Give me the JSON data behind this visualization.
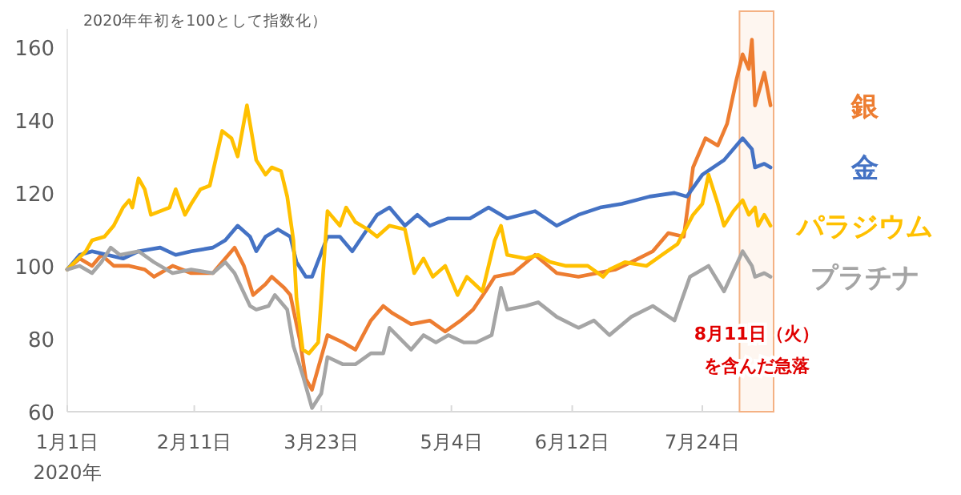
{
  "chart_data": {
    "type": "line",
    "subtitle": "2020年年初を100として指数化）",
    "xlim": [
      "2020-01-01",
      "2020-08-16"
    ],
    "xticks": [
      {
        "value": "2020-01-01",
        "label": "1月1日\n2020年"
      },
      {
        "value": "2020-02-11",
        "label": "2月11日"
      },
      {
        "value": "2020-03-23",
        "label": "3月23日"
      },
      {
        "value": "2020-05-04",
        "label": "5月4日"
      },
      {
        "value": "2020-06-12",
        "label": "6月12日"
      },
      {
        "value": "2020-07-24",
        "label": "7月24日"
      }
    ],
    "ylim": [
      60,
      165
    ],
    "yticks": [
      60,
      80,
      100,
      120,
      140,
      160
    ],
    "grid": false,
    "marker": "none",
    "line_style": "solid",
    "bands": [
      {
        "axis": "x",
        "from": "2020-08-05",
        "to": "2020-08-16",
        "label": "8月11日（火）を含んだ急落",
        "color": "#f4b183"
      }
    ],
    "series": [
      {
        "name": "銀",
        "color": "#ed7d31",
        "x": [
          "2020-01-01",
          "2020-01-05",
          "2020-01-09",
          "2020-01-12",
          "2020-01-16",
          "2020-01-21",
          "2020-01-26",
          "2020-01-29",
          "2020-02-04",
          "2020-02-10",
          "2020-02-17",
          "2020-02-21",
          "2020-02-24",
          "2020-02-27",
          "2020-03-01",
          "2020-03-05",
          "2020-03-07",
          "2020-03-11",
          "2020-03-13",
          "2020-03-16",
          "2020-03-18",
          "2020-03-20",
          "2020-03-25",
          "2020-03-30",
          "2020-04-03",
          "2020-04-08",
          "2020-04-12",
          "2020-04-15",
          "2020-04-21",
          "2020-04-27",
          "2020-05-02",
          "2020-05-07",
          "2020-05-11",
          "2020-05-15",
          "2020-05-18",
          "2020-05-24",
          "2020-05-31",
          "2020-06-07",
          "2020-06-14",
          "2020-06-26",
          "2020-07-01",
          "2020-07-08",
          "2020-07-13",
          "2020-07-18",
          "2020-07-21",
          "2020-07-25",
          "2020-07-29",
          "2020-08-01",
          "2020-08-04",
          "2020-08-06",
          "2020-08-08",
          "2020-08-09",
          "2020-08-10",
          "2020-08-13",
          "2020-08-15"
        ],
        "values": [
          99,
          102,
          100,
          103,
          100,
          100,
          99,
          97,
          100,
          98,
          98,
          102,
          105,
          100,
          92,
          95,
          97,
          94,
          92,
          80,
          69,
          66,
          81,
          79,
          77,
          85,
          89,
          87,
          84,
          85,
          82,
          85,
          88,
          93,
          97,
          98,
          103,
          98,
          97,
          99,
          101,
          104,
          109,
          108,
          127,
          135,
          133,
          139,
          151,
          158,
          154,
          162,
          144,
          153,
          144
        ]
      },
      {
        "name": "金",
        "color": "#4472c4",
        "x": [
          "2020-01-01",
          "2020-01-05",
          "2020-01-09",
          "2020-01-14",
          "2020-01-19",
          "2020-01-24",
          "2020-01-31",
          "2020-02-05",
          "2020-02-10",
          "2020-02-17",
          "2020-02-21",
          "2020-02-25",
          "2020-02-29",
          "2020-03-02",
          "2020-03-05",
          "2020-03-09",
          "2020-03-13",
          "2020-03-15",
          "2020-03-18",
          "2020-03-20",
          "2020-03-25",
          "2020-03-29",
          "2020-04-02",
          "2020-04-06",
          "2020-04-10",
          "2020-04-14",
          "2020-04-19",
          "2020-04-23",
          "2020-04-27",
          "2020-05-03",
          "2020-05-10",
          "2020-05-16",
          "2020-05-22",
          "2020-05-31",
          "2020-06-07",
          "2020-06-14",
          "2020-06-21",
          "2020-06-28",
          "2020-07-07",
          "2020-07-15",
          "2020-07-19",
          "2020-07-24",
          "2020-07-31",
          "2020-08-06",
          "2020-08-09",
          "2020-08-10",
          "2020-08-13",
          "2020-08-15"
        ],
        "values": [
          99,
          103,
          104,
          103,
          102,
          104,
          105,
          103,
          104,
          105,
          107,
          111,
          108,
          104,
          108,
          110,
          108,
          101,
          97,
          97,
          108,
          108,
          104,
          109,
          114,
          116,
          111,
          114,
          111,
          113,
          113,
          116,
          113,
          115,
          111,
          114,
          116,
          117,
          119,
          120,
          119,
          125,
          129,
          135,
          132,
          127,
          128,
          127
        ]
      },
      {
        "name": "パラジウム",
        "color": "#ffc000",
        "x": [
          "2020-01-01",
          "2020-01-07",
          "2020-01-09",
          "2020-01-13",
          "2020-01-16",
          "2020-01-19",
          "2020-01-21",
          "2020-01-22",
          "2020-01-24",
          "2020-01-26",
          "2020-01-28",
          "2020-01-31",
          "2020-02-03",
          "2020-02-05",
          "2020-02-08",
          "2020-02-10",
          "2020-02-13",
          "2020-02-16",
          "2020-02-20",
          "2020-02-23",
          "2020-02-25",
          "2020-02-28",
          "2020-03-02",
          "2020-03-05",
          "2020-03-07",
          "2020-03-10",
          "2020-03-12",
          "2020-03-14",
          "2020-03-15",
          "2020-03-17",
          "2020-03-19",
          "2020-03-22",
          "2020-03-25",
          "2020-03-29",
          "2020-03-31",
          "2020-04-03",
          "2020-04-07",
          "2020-04-10",
          "2020-04-14",
          "2020-04-19",
          "2020-04-22",
          "2020-04-25",
          "2020-04-28",
          "2020-05-02",
          "2020-05-06",
          "2020-05-09",
          "2020-05-14",
          "2020-05-16",
          "2020-05-18",
          "2020-05-20",
          "2020-05-22",
          "2020-05-28",
          "2020-06-01",
          "2020-06-05",
          "2020-06-10",
          "2020-06-17",
          "2020-06-22",
          "2020-06-24",
          "2020-06-29",
          "2020-07-06",
          "2020-07-11",
          "2020-07-16",
          "2020-07-21",
          "2020-07-24",
          "2020-07-26",
          "2020-07-29",
          "2020-07-31",
          "2020-08-03",
          "2020-08-06",
          "2020-08-08",
          "2020-08-10",
          "2020-08-11",
          "2020-08-13",
          "2020-08-15"
        ],
        "values": [
          99,
          104,
          107,
          108,
          111,
          116,
          118,
          116,
          124,
          121,
          114,
          115,
          116,
          121,
          114,
          117,
          121,
          122,
          137,
          135,
          130,
          144,
          129,
          125,
          127,
          126,
          119,
          107,
          91,
          77,
          76,
          79,
          115,
          111,
          116,
          112,
          110,
          108,
          111,
          110,
          98,
          102,
          97,
          100,
          92,
          97,
          93,
          100,
          107,
          111,
          103,
          102,
          103,
          101,
          100,
          100,
          97,
          99,
          101,
          100,
          103,
          106,
          114,
          117,
          125,
          117,
          111,
          115,
          118,
          114,
          116,
          111,
          114,
          111
        ]
      },
      {
        "name": "プラチナ",
        "color": "#a5a5a5",
        "x": [
          "2020-01-01",
          "2020-01-05",
          "2020-01-09",
          "2020-01-12",
          "2020-01-15",
          "2020-01-18",
          "2020-01-24",
          "2020-01-29",
          "2020-02-04",
          "2020-02-10",
          "2020-02-17",
          "2020-02-21",
          "2020-02-24",
          "2020-02-29",
          "2020-03-02",
          "2020-03-06",
          "2020-03-08",
          "2020-03-12",
          "2020-03-14",
          "2020-03-17",
          "2020-03-20",
          "2020-03-23",
          "2020-03-25",
          "2020-03-30",
          "2020-04-03",
          "2020-04-08",
          "2020-04-12",
          "2020-04-14",
          "2020-04-21",
          "2020-04-25",
          "2020-04-29",
          "2020-05-03",
          "2020-05-08",
          "2020-05-12",
          "2020-05-17",
          "2020-05-20",
          "2020-05-22",
          "2020-05-28",
          "2020-06-01",
          "2020-06-07",
          "2020-06-14",
          "2020-06-19",
          "2020-06-24",
          "2020-07-01",
          "2020-07-08",
          "2020-07-15",
          "2020-07-20",
          "2020-07-26",
          "2020-07-31",
          "2020-08-06",
          "2020-08-09",
          "2020-08-10",
          "2020-08-13",
          "2020-08-15"
        ],
        "values": [
          99,
          100,
          98,
          101,
          105,
          103,
          104,
          101,
          98,
          99,
          98,
          101,
          98,
          89,
          88,
          89,
          92,
          88,
          78,
          70,
          61,
          65,
          75,
          73,
          73,
          76,
          76,
          83,
          77,
          81,
          79,
          81,
          79,
          79,
          81,
          94,
          88,
          89,
          90,
          86,
          83,
          85,
          81,
          86,
          89,
          85,
          97,
          100,
          93,
          104,
          100,
          97,
          98,
          97
        ]
      }
    ]
  }
}
